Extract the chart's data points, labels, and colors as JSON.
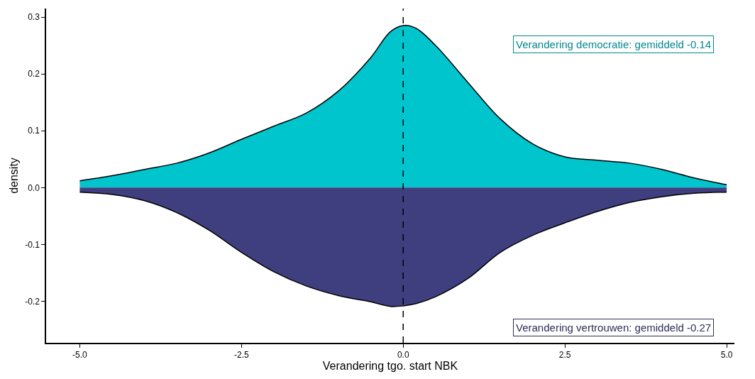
{
  "chart_data": {
    "type": "area",
    "xlabel": "Verandering tgo. start NBK",
    "ylabel": "density",
    "x": [
      -5,
      -4.5,
      -4,
      -3.5,
      -3,
      -2.5,
      -2,
      -1.5,
      -1,
      -0.5,
      -0.2,
      0,
      0.2,
      0.5,
      1,
      1.5,
      2,
      2.5,
      3,
      3.5,
      4,
      4.5,
      5
    ],
    "series": [
      {
        "color": "#00c5cd",
        "values": [
          0.012,
          0.021,
          0.032,
          0.043,
          0.061,
          0.085,
          0.108,
          0.131,
          0.17,
          0.229,
          0.274,
          0.285,
          0.28,
          0.25,
          0.185,
          0.121,
          0.077,
          0.054,
          0.048,
          0.043,
          0.032,
          0.017,
          0.005
        ]
      },
      {
        "color": "#3f3f7f",
        "values": [
          -0.008,
          -0.012,
          -0.023,
          -0.044,
          -0.075,
          -0.114,
          -0.148,
          -0.173,
          -0.19,
          -0.201,
          -0.209,
          -0.208,
          -0.204,
          -0.192,
          -0.16,
          -0.114,
          -0.084,
          -0.062,
          -0.042,
          -0.026,
          -0.016,
          -0.01,
          -0.008
        ]
      }
    ],
    "annotations": [
      "Verandering democratie: gemiddeld -0.14",
      "Verandering vertrouwen: gemiddeld -0.27"
    ],
    "ref_lines": [
      {
        "axis": "x",
        "value": 0,
        "color": "#000000",
        "line_style": "dashed"
      }
    ],
    "xlim": [
      -5.52,
      5.12
    ],
    "xticks": [
      {
        "value": -5,
        "label": "-5.0"
      },
      {
        "value": -2.5,
        "label": "-2.5"
      },
      {
        "value": 0,
        "label": "0.0"
      },
      {
        "value": 2.5,
        "label": "2.5"
      },
      {
        "value": 5,
        "label": "5.0"
      }
    ],
    "ylim": [
      -0.273,
      0.315
    ],
    "yticks": [
      {
        "value": -0.2,
        "label": "-0.2"
      },
      {
        "value": -0.1,
        "label": "-0.1"
      },
      {
        "value": 0,
        "label": "0.0"
      },
      {
        "value": 0.1,
        "label": "0.1"
      },
      {
        "value": 0.2,
        "label": "0.2"
      },
      {
        "value": 0.3,
        "label": "0.3"
      }
    ],
    "line_style": "solid"
  }
}
